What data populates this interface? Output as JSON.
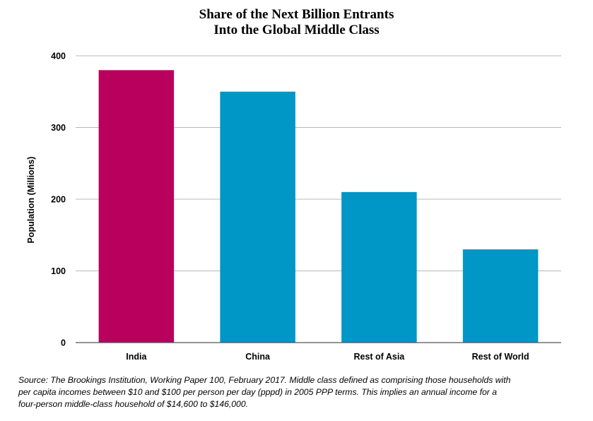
{
  "chart_data": {
    "type": "bar",
    "title": [
      "Share of the Next Billion Entrants",
      "Into the Global Middle Class"
    ],
    "xlabel": "",
    "ylabel": "Population (Millions)",
    "categories": [
      "India",
      "China",
      "Rest of Asia",
      "Rest of World"
    ],
    "values": [
      380,
      350,
      210,
      130
    ],
    "bar_colors": [
      "#b8005c",
      "#0096c6",
      "#0096c6",
      "#0096c6"
    ],
    "ylim": [
      0,
      400
    ],
    "yticks": [
      0,
      100,
      200,
      300,
      400
    ],
    "grid": true,
    "legend": "none"
  },
  "source_lines": [
    "Source: The Brookings Institution, Working Paper 100, February 2017. Middle class defined as comprising those households with",
    "per capita incomes between $10 and $100 per person per day (pppd) in 2005 PPP terms. This implies an annual income for a",
    "four-person middle-class household of $14,600 to $146,000."
  ]
}
